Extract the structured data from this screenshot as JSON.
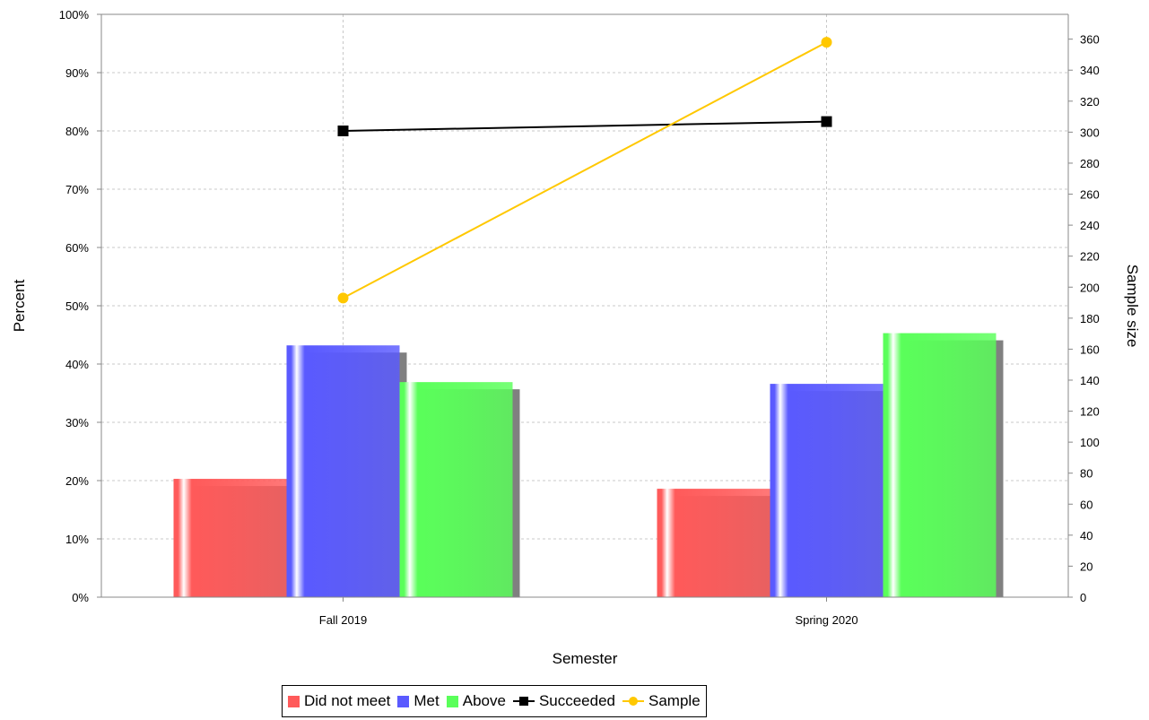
{
  "chart_data": {
    "type": "bar",
    "categories": [
      "Fall 2019",
      "Spring 2020"
    ],
    "xlabel": "Semester",
    "ylabel": "Percent",
    "y2label": "Sample size",
    "ylim": [
      0,
      100
    ],
    "y2lim": [
      0,
      376
    ],
    "yticks": [
      "0%",
      "10%",
      "20%",
      "30%",
      "40%",
      "50%",
      "60%",
      "70%",
      "80%",
      "90%",
      "100%"
    ],
    "y2ticks": [
      "0",
      "20",
      "40",
      "60",
      "80",
      "100",
      "120",
      "140",
      "160",
      "180",
      "200",
      "220",
      "240",
      "260",
      "280",
      "300",
      "320",
      "340",
      "360"
    ],
    "grid": true,
    "legend_position": "bottom",
    "series": [
      {
        "name": "Did not meet",
        "kind": "bar",
        "axis": "left",
        "color": "#ff5a5a",
        "values": [
          20.3,
          18.6
        ]
      },
      {
        "name": "Met",
        "kind": "bar",
        "axis": "left",
        "color": "#5a5aff",
        "values": [
          43.2,
          36.6
        ]
      },
      {
        "name": "Above",
        "kind": "bar",
        "axis": "left",
        "color": "#5aff5a",
        "values": [
          36.9,
          45.3
        ]
      },
      {
        "name": "Succeeded",
        "kind": "line",
        "axis": "left",
        "color": "#000000",
        "marker": "square",
        "values": [
          80.0,
          81.6
        ]
      },
      {
        "name": "Sample",
        "kind": "line",
        "axis": "right",
        "color": "#ffc800",
        "marker": "circle",
        "values": [
          193,
          358
        ]
      }
    ]
  }
}
